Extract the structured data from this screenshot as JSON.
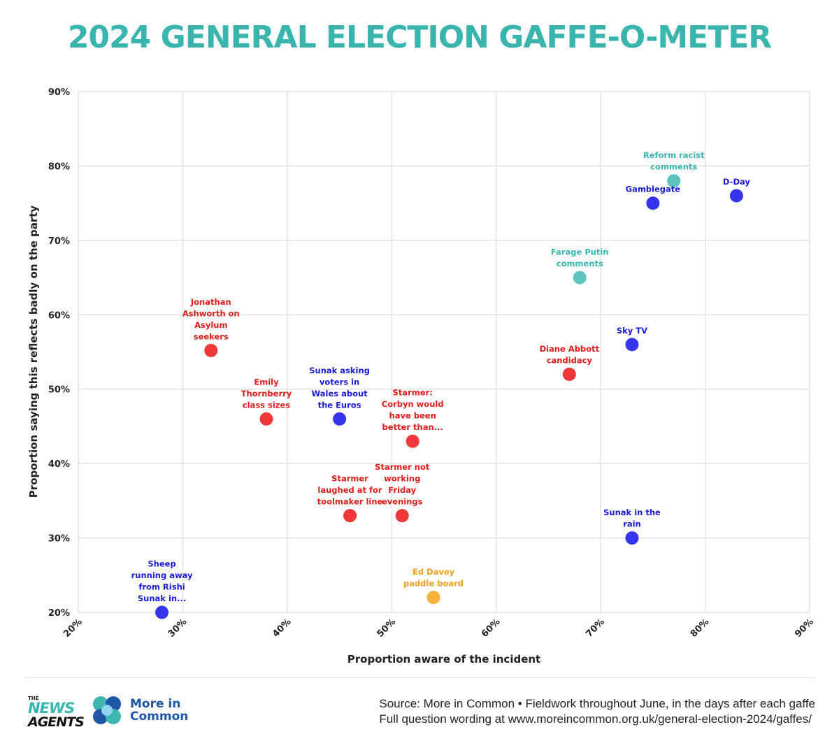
{
  "title": "2024 GENERAL ELECTION GAFFE-O-METER",
  "colors": {
    "title": "#3ab5ad",
    "conservative": "#3535f0",
    "conservative_label": "#1a1ad6",
    "labour": "#f03838",
    "labour_label": "#e01b1b",
    "reform": "#5cc4bd",
    "reform_label": "#3ab5ad",
    "libdem": "#f7b23b",
    "libdem_label": "#f2a21e",
    "grid": "#e3e3e3",
    "axis_text": "#222222"
  },
  "chart_data": {
    "type": "scatter",
    "xlabel": "Proportion aware of the incident",
    "ylabel": "Proportion saying this reflects badly on the party",
    "xlim": [
      20,
      90
    ],
    "ylim": [
      20,
      90
    ],
    "xticks": [
      "20%",
      "30%",
      "40%",
      "50%",
      "60%",
      "70%",
      "80%",
      "90%"
    ],
    "yticks": [
      "20%",
      "30%",
      "40%",
      "50%",
      "60%",
      "70%",
      "80%",
      "90%"
    ],
    "grid": true,
    "points": [
      {
        "name": "Reform racist comments",
        "lines": [
          "Reform racist",
          "comments"
        ],
        "x": 77,
        "y": 78,
        "party": "reform"
      },
      {
        "name": "D-Day",
        "lines": [
          "D-Day"
        ],
        "x": 83,
        "y": 76,
        "party": "conservative"
      },
      {
        "name": "Gamblegate",
        "lines": [
          "Gamblegate"
        ],
        "x": 75,
        "y": 75,
        "party": "conservative"
      },
      {
        "name": "Farage Putin comments",
        "lines": [
          "Farage Putin",
          "comments"
        ],
        "x": 68,
        "y": 65,
        "party": "reform"
      },
      {
        "name": "Sky TV",
        "lines": [
          "Sky TV"
        ],
        "x": 73,
        "y": 56,
        "party": "conservative"
      },
      {
        "name": "Diane Abbott candidacy",
        "lines": [
          "Diane Abbott",
          "candidacy"
        ],
        "x": 67,
        "y": 52,
        "party": "labour"
      },
      {
        "name": "Jonathan Ashworth on Asylum seekers",
        "lines": [
          "Jonathan",
          "Ashworth on",
          "Asylum",
          "seekers"
        ],
        "x": 32.7,
        "y": 55.2,
        "party": "labour"
      },
      {
        "name": "Emily Thornberry class sizes",
        "lines": [
          "Emily",
          "Thornberry",
          "class sizes"
        ],
        "x": 38,
        "y": 46,
        "party": "labour"
      },
      {
        "name": "Sunak asking voters in Wales about the Euros",
        "lines": [
          "Sunak asking",
          "voters in",
          "Wales about",
          "the Euros"
        ],
        "x": 45,
        "y": 46,
        "party": "conservative"
      },
      {
        "name": "Starmer: Corbyn would have been better than...",
        "lines": [
          "Starmer:",
          "Corbyn would",
          "have been",
          "better than..."
        ],
        "x": 52,
        "y": 43,
        "party": "labour"
      },
      {
        "name": "Starmer laughed at for toolmaker line",
        "lines": [
          "Starmer",
          "laughed at for",
          "toolmaker line"
        ],
        "x": 46,
        "y": 33,
        "party": "labour"
      },
      {
        "name": "Starmer not working Friday evenings",
        "lines": [
          "Starmer not",
          "working",
          "Friday",
          "evenings"
        ],
        "x": 51,
        "y": 33,
        "party": "labour"
      },
      {
        "name": "Sunak in the rain",
        "lines": [
          "Sunak in the",
          "rain"
        ],
        "x": 73,
        "y": 30,
        "party": "conservative"
      },
      {
        "name": "Ed Davey paddle board",
        "lines": [
          "Ed Davey",
          "paddle board"
        ],
        "x": 54,
        "y": 22,
        "party": "libdem"
      },
      {
        "name": "Sheep running away from Rishi Sunak in...",
        "lines": [
          "Sheep",
          "running away",
          "from Rishi",
          "Sunak in..."
        ],
        "x": 28,
        "y": 20,
        "party": "conservative"
      }
    ]
  },
  "footer": {
    "news_logo_the": "THE",
    "news_logo_news": "NEWS",
    "news_logo_agents": "AGENTS",
    "mic_line1": "More in",
    "mic_line2": "Common",
    "source_line1": "Source: More in Common • Fieldwork throughout June, in the days after each gaffe",
    "source_line2": "Full question wording at www.moreincommon.org.uk/general-election-2024/gaffes/"
  }
}
